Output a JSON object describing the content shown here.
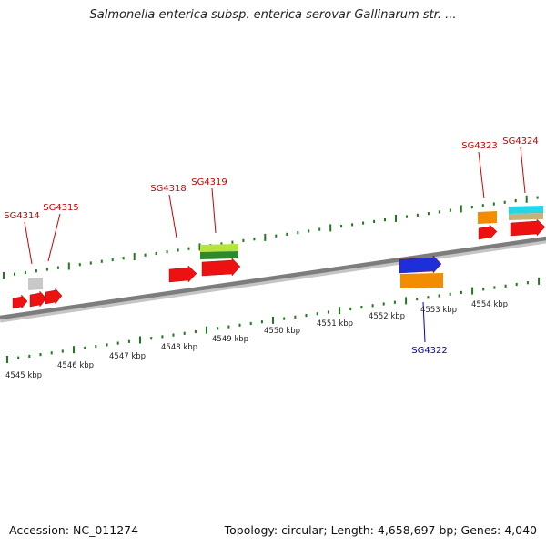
{
  "title": "Salmonella enterica subsp. enterica serovar Gallinarum str. ...",
  "footer": {
    "accession": "Accession: NC_011274",
    "summary": "Topology: circular; Length: 4,658,697 bp; Genes: 4,040"
  },
  "colors": {
    "backbone": "#7d7d7d",
    "tick": "#1f7a1f",
    "forward_label": "#cc0000",
    "reverse_label": "#0000cc",
    "red": "#ee1111",
    "gray": "#c8c8c8",
    "orange": "#f28c00",
    "yellow_green": "#b5e43a",
    "dark_green": "#2c8a2c",
    "cyan": "#22d8e8",
    "tan": "#c9b27a",
    "blue": "#1c2fd8"
  },
  "scale_labels": [
    "4545 kbp",
    "4546 kbp",
    "4547 kbp",
    "4548 kbp",
    "4549 kbp",
    "4550 kbp",
    "4551 kbp",
    "4552 kbp",
    "4553 kbp",
    "4554 kbp"
  ],
  "gene_labels": [
    {
      "id": "SG4314",
      "strand": "forward"
    },
    {
      "id": "SG4315",
      "strand": "forward"
    },
    {
      "id": "SG4318",
      "strand": "forward"
    },
    {
      "id": "SG4319",
      "strand": "forward"
    },
    {
      "id": "SG4323",
      "strand": "forward"
    },
    {
      "id": "SG4324",
      "strand": "forward"
    },
    {
      "id": "SG4322",
      "strand": "reverse"
    }
  ]
}
